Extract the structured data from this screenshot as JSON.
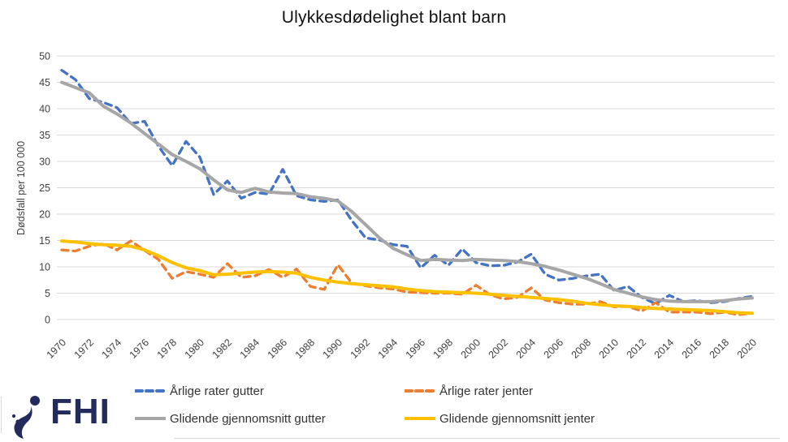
{
  "title": "Ulykkesdødelighet blant barn",
  "logo": {
    "text": "FHI"
  },
  "chart_data": {
    "type": "line",
    "title": "Ulykkesdødelighet blant barn",
    "xlabel": "",
    "ylabel": "Dødsfall per 100 000",
    "ylim": [
      0,
      50
    ],
    "ytick_step": 5,
    "x_label_every_years": 2,
    "grid": "horizontal",
    "legend_position": "bottom",
    "x": [
      1970,
      1971,
      1972,
      1973,
      1974,
      1975,
      1976,
      1977,
      1978,
      1979,
      1980,
      1981,
      1982,
      1983,
      1984,
      1985,
      1986,
      1987,
      1988,
      1989,
      1990,
      1991,
      1992,
      1993,
      1994,
      1995,
      1996,
      1997,
      1998,
      1999,
      2000,
      2001,
      2002,
      2003,
      2004,
      2005,
      2006,
      2007,
      2008,
      2009,
      2010,
      2011,
      2012,
      2013,
      2014,
      2015,
      2016,
      2017,
      2018,
      2019,
      2020
    ],
    "series": [
      {
        "name": "Årlige rater gutter",
        "color": "#4472C4",
        "style": "dashed",
        "width": 3.3,
        "values": [
          47.3,
          45.5,
          41.9,
          41.2,
          40.2,
          37.2,
          37.6,
          32.9,
          29.2,
          33.8,
          30.8,
          23.7,
          26.3,
          23.0,
          24.1,
          23.8,
          28.5,
          23.5,
          22.7,
          22.4,
          22.7,
          18.8,
          15.5,
          15.1,
          14.2,
          13.9,
          9.8,
          12.2,
          10.3,
          13.4,
          10.8,
          10.2,
          10.3,
          10.9,
          12.4,
          8.6,
          7.5,
          7.8,
          8.3,
          8.6,
          5.5,
          6.3,
          4.2,
          3.0,
          4.6,
          3.4,
          3.6,
          3.2,
          3.4,
          4.0,
          4.4
        ]
      },
      {
        "name": "Årlige rater jenter",
        "color": "#ED7D31",
        "style": "dashed",
        "width": 3.3,
        "values": [
          13.2,
          13.0,
          13.9,
          14.4,
          13.2,
          14.9,
          13.1,
          11.4,
          7.8,
          9.1,
          8.6,
          8.0,
          10.6,
          8.0,
          8.3,
          9.5,
          8.0,
          9.6,
          6.3,
          5.7,
          10.4,
          6.9,
          6.4,
          6.0,
          5.8,
          5.2,
          5.1,
          5.0,
          5.0,
          4.8,
          6.5,
          4.7,
          3.9,
          4.2,
          6.0,
          3.7,
          3.2,
          2.9,
          2.9,
          3.4,
          2.4,
          2.5,
          1.6,
          3.2,
          1.4,
          1.4,
          1.4,
          1.1,
          1.4,
          0.9,
          1.2
        ]
      },
      {
        "name": "Glidende gjennomsnitt gutter",
        "color": "#A6A6A6",
        "style": "solid",
        "width": 4,
        "values": [
          45.0,
          44.0,
          43.0,
          40.5,
          39.0,
          37.3,
          35.3,
          33.3,
          31.3,
          30.0,
          28.6,
          26.5,
          24.6,
          24.1,
          24.9,
          24.2,
          24.0,
          23.9,
          23.3,
          23.0,
          22.5,
          20.5,
          18.0,
          15.5,
          13.5,
          12.3,
          11.2,
          11.4,
          11.3,
          11.2,
          11.4,
          11.3,
          11.2,
          11.0,
          10.6,
          10.1,
          9.4,
          8.6,
          7.8,
          6.8,
          5.7,
          5.0,
          4.3,
          3.8,
          3.5,
          3.4,
          3.4,
          3.4,
          3.6,
          3.9,
          4.1
        ]
      },
      {
        "name": "Glidende gjennomsnitt jenter",
        "color": "#FFC000",
        "style": "solid",
        "width": 4,
        "values": [
          14.9,
          14.7,
          14.4,
          14.2,
          14.1,
          13.9,
          13.2,
          12.1,
          10.8,
          9.8,
          9.3,
          8.5,
          8.6,
          8.8,
          9.0,
          9.1,
          9.0,
          8.8,
          8.0,
          7.5,
          7.1,
          6.8,
          6.6,
          6.4,
          6.2,
          5.8,
          5.5,
          5.3,
          5.2,
          5.1,
          5.0,
          4.8,
          4.6,
          4.4,
          4.2,
          4.0,
          3.8,
          3.5,
          3.1,
          2.8,
          2.6,
          2.5,
          2.3,
          2.1,
          2.0,
          1.9,
          1.8,
          1.7,
          1.5,
          1.3,
          1.2
        ]
      }
    ]
  }
}
